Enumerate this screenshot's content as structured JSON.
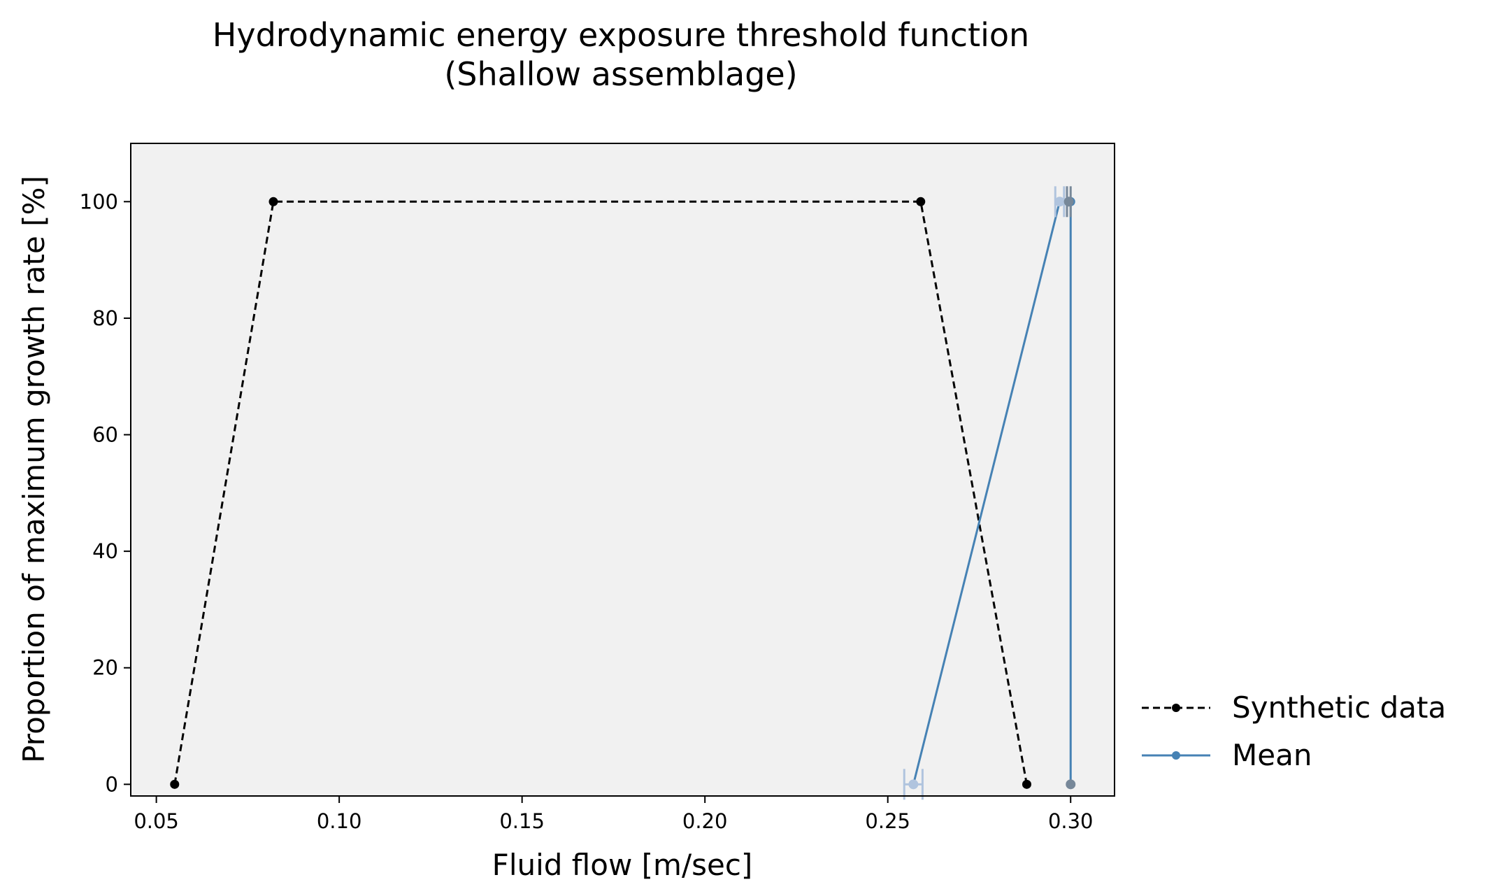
{
  "chart_data": {
    "type": "line",
    "title": "Hydrodynamic energy exposure threshold function",
    "subtitle": "(Shallow assemblage)",
    "xlabel": "Fluid flow [m/sec]",
    "ylabel": "Proportion of maximum growth rate [%]",
    "xlim": [
      0.043,
      0.312
    ],
    "ylim": [
      -2,
      110
    ],
    "x_ticks": [
      "0.05",
      "0.10",
      "0.15",
      "0.20",
      "0.25",
      "0.30"
    ],
    "x_tick_values": [
      0.05,
      0.1,
      0.15,
      0.2,
      0.25,
      0.3
    ],
    "y_ticks": [
      "0",
      "20",
      "40",
      "60",
      "80",
      "100"
    ],
    "y_tick_values": [
      0,
      20,
      40,
      60,
      80,
      100
    ],
    "grid": false,
    "legend_position": "outside-right-bottom",
    "background": "#f1f1f1",
    "series": [
      {
        "name": "Synthetic data",
        "color": "#000000",
        "style": "dashed",
        "marker": "dot",
        "x": [
          0.055,
          0.082,
          0.259,
          0.288
        ],
        "y": [
          0,
          100,
          100,
          0
        ]
      },
      {
        "name": "Mean",
        "color": "#4682b4",
        "style": "solid",
        "marker": "dot",
        "x": [
          0.257,
          0.297,
          0.3,
          0.3
        ],
        "y": [
          0,
          100,
          100,
          0
        ]
      }
    ],
    "error_bars": [
      {
        "x": 0.257,
        "y": 0,
        "xerr": 0.0025,
        "color": "#b0c4de"
      },
      {
        "x": 0.297,
        "y": 100,
        "xerr": 0.0012,
        "color": "#b0c4de"
      },
      {
        "x": 0.2995,
        "y": 100,
        "xerr": 0.0005,
        "color": "#778899"
      }
    ],
    "overlay_points": [
      {
        "x": 0.257,
        "y": 0,
        "color": "#b0c4de"
      },
      {
        "x": 0.297,
        "y": 100,
        "color": "#b0c4de"
      },
      {
        "x": 0.2995,
        "y": 100,
        "color": "#778899"
      },
      {
        "x": 0.3,
        "y": 0,
        "color": "#778899"
      }
    ]
  }
}
